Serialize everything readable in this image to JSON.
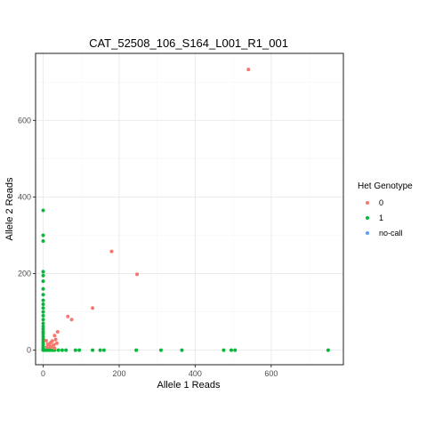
{
  "chart_data": {
    "type": "scatter",
    "title": "CAT_52508_106_S164_L001_R1_001",
    "xlabel": "Allele 1 Reads",
    "ylabel": "Allele 2 Reads",
    "xlim": [
      -20,
      790
    ],
    "ylim": [
      -38,
      775
    ],
    "x_ticks": [
      0,
      200,
      400,
      600
    ],
    "y_ticks": [
      0,
      200,
      400,
      600
    ],
    "grid": true,
    "legend_position": "right",
    "legend_title": "Het Genotype",
    "series": [
      {
        "name": "0",
        "color": "#F8766D",
        "x": [
          540,
          247,
          180,
          130,
          65,
          75,
          38,
          30,
          33,
          24,
          20,
          28,
          15,
          22,
          12,
          10,
          30,
          36,
          18,
          8
        ],
        "y": [
          733,
          198,
          258,
          110,
          88,
          80,
          48,
          38,
          28,
          24,
          20,
          14,
          14,
          10,
          16,
          8,
          5,
          18,
          8,
          25
        ]
      },
      {
        "name": "1",
        "color": "#00BA38",
        "x": [
          0,
          0,
          0,
          0,
          0,
          0,
          0,
          0,
          0,
          0,
          0,
          0,
          0,
          0,
          0,
          0,
          0,
          0,
          0,
          0,
          0,
          0,
          0,
          0,
          0,
          0,
          0,
          5,
          10,
          15,
          20,
          25,
          30,
          40,
          50,
          60,
          85,
          95,
          130,
          150,
          160,
          245,
          310,
          365,
          475,
          495,
          505,
          750
        ],
        "y": [
          365,
          300,
          285,
          205,
          195,
          180,
          160,
          145,
          130,
          120,
          110,
          100,
          90,
          80,
          70,
          62,
          55,
          48,
          42,
          35,
          28,
          22,
          16,
          10,
          6,
          3,
          0,
          0,
          0,
          0,
          0,
          0,
          0,
          0,
          0,
          0,
          0,
          0,
          0,
          0,
          0,
          0,
          0,
          0,
          0,
          0,
          0,
          0
        ]
      },
      {
        "name": "no-call",
        "color": "#619CFF",
        "x": [],
        "y": []
      }
    ]
  }
}
